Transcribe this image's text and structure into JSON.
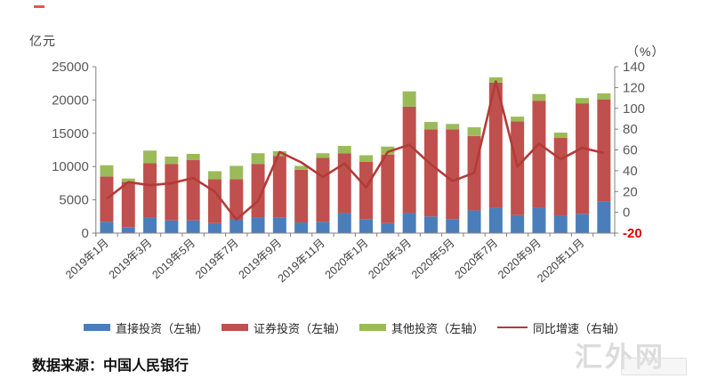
{
  "chart_data": {
    "type": "bar",
    "subtype": "stacked-bars-with-line-overlay",
    "categories": [
      "2019年1月",
      "2019年2月",
      "2019年3月",
      "2019年4月",
      "2019年5月",
      "2019年6月",
      "2019年7月",
      "2019年8月",
      "2019年9月",
      "2019年10月",
      "2019年11月",
      "2019年12月",
      "2020年1月",
      "2020年2月",
      "2020年3月",
      "2020年4月",
      "2020年5月",
      "2020年6月",
      "2020年7月",
      "2020年8月",
      "2020年9月",
      "2020年10月",
      "2020年11月",
      "2020年12月"
    ],
    "x_label_every": 2,
    "left_axis": {
      "title": "亿元",
      "min": 0,
      "max": 25000,
      "step": 5000,
      "tick_labels": [
        "0",
        "5000",
        "10000",
        "15000",
        "20000",
        "25000"
      ]
    },
    "right_axis": {
      "title": "（%）",
      "min": -20,
      "max": 140,
      "step": 20,
      "tick_labels": [
        "-20",
        "0",
        "20",
        "40",
        "60",
        "80",
        "100",
        "120",
        "140"
      ],
      "negative_tick_color": "#e00000"
    },
    "grid": "off",
    "legend_position": "bottom",
    "series": [
      {
        "name": "直接投资（左轴）",
        "type": "bar",
        "axis": "left",
        "color": "#4a7ebb",
        "values": [
          1700,
          900,
          2400,
          1900,
          1900,
          1500,
          2000,
          2400,
          2300,
          1600,
          1700,
          3000,
          2100,
          1500,
          3000,
          2500,
          2100,
          3400,
          3800,
          2700,
          3800,
          2600,
          2900,
          4700
        ]
      },
      {
        "name": "证券投资（左轴）",
        "type": "bar",
        "axis": "left",
        "color": "#c0504d",
        "values": [
          6800,
          6800,
          8100,
          8500,
          9100,
          6600,
          6100,
          8000,
          9300,
          7900,
          9600,
          9000,
          8600,
          10300,
          16000,
          13100,
          13500,
          11200,
          18800,
          14100,
          16100,
          11700,
          16600,
          15400
        ]
      },
      {
        "name": "其他投资（左轴）",
        "type": "bar",
        "axis": "left",
        "color": "#9bbb59",
        "values": [
          1700,
          500,
          1900,
          1100,
          900,
          1200,
          2000,
          1600,
          700,
          600,
          700,
          1100,
          1000,
          1200,
          2300,
          1100,
          800,
          1300,
          800,
          700,
          1000,
          800,
          800,
          900
        ]
      },
      {
        "name": "同比增速（右轴）",
        "type": "line",
        "axis": "right",
        "color": "#b23b38",
        "values": [
          13,
          29,
          26,
          28,
          33,
          20,
          -7,
          11,
          58,
          48,
          34,
          47,
          24,
          58,
          65,
          46,
          30,
          38,
          126,
          44,
          66,
          51,
          62,
          57
        ]
      }
    ]
  },
  "axis_titles": {
    "left": "亿元",
    "right": "（%）"
  },
  "legend": {
    "item1": "直接投资（左轴）",
    "item2": "证券投资（左轴）",
    "item3": "其他投资（左轴）",
    "item4": "同比增速（右轴）"
  },
  "source": {
    "text": "数据来源：中国人民银行"
  },
  "watermark": {
    "text": "汇外网"
  },
  "colors": {
    "axis": "#808080",
    "tick_text": "#595959",
    "x_label_text": "#404040"
  }
}
